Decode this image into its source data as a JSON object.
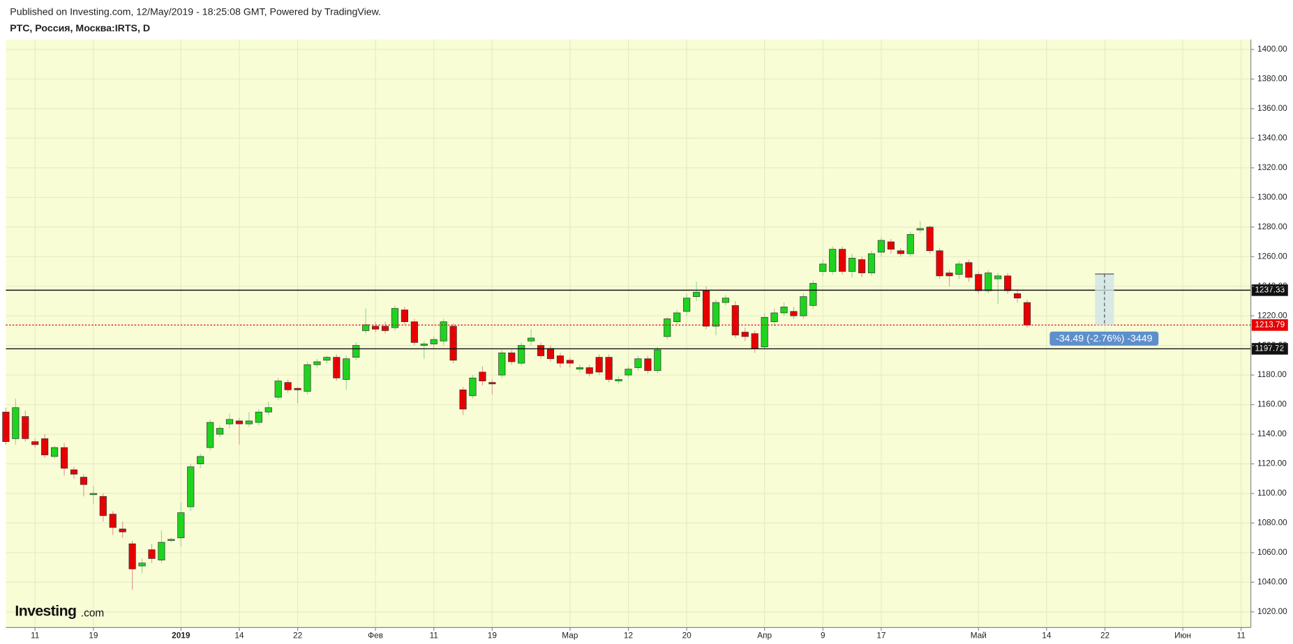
{
  "header": {
    "published": "Published on Investing.com, 12/May/2019 - 18:25:08 GMT, Powered by TradingView.",
    "symbol": "РТС, Россия, Москва:IRTS, D"
  },
  "chart_data": {
    "type": "candlestick",
    "watermark": "Investing",
    "watermark_suffix": ".com",
    "up_color": "#1fd41f",
    "down_color": "#e80000",
    "grid": true,
    "open": [
      1155,
      1137,
      1152,
      1135,
      1137,
      1125,
      1131,
      1116,
      1111,
      1100,
      1098,
      1086,
      1076,
      1066,
      1051,
      1062,
      1055,
      1069,
      1070,
      1091,
      1120,
      1131,
      1140,
      1147,
      1149,
      1147,
      1148,
      1155,
      1165,
      1175,
      1171,
      1169,
      1187,
      1190,
      1192,
      1177,
      1192,
      1210,
      1213,
      1213,
      1212,
      1224,
      1216,
      1200,
      1201,
      1203,
      1213,
      1170,
      1166,
      1182,
      1175,
      1180,
      1195,
      1188,
      1203,
      1200,
      1198,
      1193,
      1190,
      1184,
      1185,
      1192,
      1192,
      1176,
      1180,
      1185,
      1191,
      1183,
      1206,
      1216,
      1223,
      1233,
      1237,
      1213,
      1229,
      1227,
      1209,
      1208,
      1199,
      1216,
      1222,
      1223,
      1220,
      1227,
      1250,
      1250,
      1265,
      1250,
      1258,
      1249,
      1263,
      1270,
      1264,
      1262,
      1278,
      1280,
      1264,
      1249,
      1248,
      1256,
      1248,
      1237,
      1245,
      1247,
      1235,
      1229
    ],
    "high": [
      1158,
      1164,
      1156,
      1137,
      1140,
      1132,
      1134,
      1118,
      1113,
      1105,
      1100,
      1088,
      1081,
      1068,
      1056,
      1066,
      1075,
      1070,
      1094,
      1120,
      1127,
      1150,
      1146,
      1154,
      1151,
      1155,
      1157,
      1162,
      1178,
      1177,
      1172,
      1189,
      1191,
      1193,
      1194,
      1193,
      1202,
      1225,
      1216,
      1216,
      1227,
      1226,
      1218,
      1203,
      1206,
      1218,
      1215,
      1172,
      1180,
      1186,
      1177,
      1197,
      1197,
      1202,
      1211,
      1202,
      1200,
      1195,
      1192,
      1187,
      1187,
      1194,
      1194,
      1179,
      1186,
      1193,
      1193,
      1199,
      1219,
      1224,
      1235,
      1243,
      1240,
      1231,
      1234,
      1230,
      1212,
      1210,
      1222,
      1225,
      1229,
      1226,
      1235,
      1244,
      1258,
      1267,
      1267,
      1262,
      1260,
      1264,
      1273,
      1272,
      1266,
      1277,
      1284,
      1281,
      1266,
      1251,
      1257,
      1258,
      1250,
      1251,
      1249,
      1249,
      1238,
      1231
    ],
    "low": [
      1133,
      1133,
      1135,
      1131,
      1124,
      1124,
      1112,
      1110,
      1098,
      1093,
      1081,
      1072,
      1070,
      1035,
      1046,
      1053,
      1053,
      1067,
      1064,
      1088,
      1117,
      1129,
      1138,
      1144,
      1133,
      1145,
      1146,
      1153,
      1163,
      1168,
      1161,
      1167,
      1185,
      1188,
      1176,
      1170,
      1190,
      1208,
      1209,
      1208,
      1210,
      1214,
      1200,
      1191,
      1198,
      1200,
      1188,
      1153,
      1164,
      1173,
      1167,
      1178,
      1187,
      1186,
      1200,
      1191,
      1189,
      1185,
      1185,
      1182,
      1179,
      1180,
      1175,
      1174,
      1178,
      1183,
      1181,
      1181,
      1204,
      1214,
      1220,
      1230,
      1211,
      1207,
      1227,
      1205,
      1203,
      1195,
      1197,
      1213,
      1220,
      1218,
      1218,
      1225,
      1247,
      1248,
      1248,
      1246,
      1246,
      1247,
      1260,
      1262,
      1260,
      1260,
      1276,
      1262,
      1245,
      1240,
      1245,
      1243,
      1235,
      1235,
      1228,
      1235,
      1229,
      1212
    ],
    "close": [
      1135,
      1158,
      1137,
      1133,
      1126,
      1131,
      1117,
      1113,
      1106,
      1100,
      1085,
      1077,
      1074,
      1049,
      1053,
      1056,
      1067,
      1069,
      1087,
      1118,
      1125,
      1148,
      1144,
      1150,
      1147,
      1149,
      1155,
      1158,
      1176,
      1170,
      1170,
      1187,
      1189,
      1192,
      1178,
      1191,
      1200,
      1214,
      1211,
      1210,
      1225,
      1216,
      1202,
      1201,
      1204,
      1216,
      1190,
      1157,
      1178,
      1176,
      1174,
      1195,
      1189,
      1200,
      1205,
      1193,
      1191,
      1188,
      1188,
      1185,
      1181,
      1182,
      1177,
      1177,
      1184,
      1191,
      1183,
      1197,
      1218,
      1222,
      1232,
      1236,
      1213,
      1229,
      1232,
      1207,
      1206,
      1198,
      1219,
      1222,
      1226,
      1220,
      1233,
      1242,
      1255,
      1265,
      1250,
      1259,
      1249,
      1262,
      1271,
      1265,
      1262,
      1275,
      1279,
      1264,
      1247,
      1247,
      1255,
      1246,
      1237,
      1249,
      1247,
      1237,
      1232,
      1213.79
    ],
    "levels": [
      1237.33,
      1197.72
    ],
    "measure": {
      "from": 1248.28,
      "to": 1213.79,
      "label": "-34.49 (-2.76%) -3449"
    },
    "xlim": [
      0,
      128
    ],
    "ylim": [
      1009.4,
      1406.7
    ],
    "xticks": [
      {
        "value": 3,
        "label": "11"
      },
      {
        "value": 9,
        "label": "19"
      },
      {
        "value": 18,
        "label": "2019"
      },
      {
        "value": 24,
        "label": "14"
      },
      {
        "value": 30,
        "label": "22"
      },
      {
        "value": 38,
        "label": "Фев"
      },
      {
        "value": 44,
        "label": "11"
      },
      {
        "value": 50,
        "label": "19"
      },
      {
        "value": 58,
        "label": "Мар"
      },
      {
        "value": 64,
        "label": "12"
      },
      {
        "value": 70,
        "label": "20"
      },
      {
        "value": 78,
        "label": "Апр"
      },
      {
        "value": 84,
        "label": "9"
      },
      {
        "value": 90,
        "label": "17"
      },
      {
        "value": 100,
        "label": "Май"
      },
      {
        "value": 107,
        "label": "14"
      },
      {
        "value": 113,
        "label": "22"
      },
      {
        "value": 121,
        "label": "Июн"
      },
      {
        "value": 127,
        "label": "11"
      }
    ],
    "yticks": [
      {
        "value": 1020,
        "label": "1020.00"
      },
      {
        "value": 1040,
        "label": "1040.00"
      },
      {
        "value": 1060,
        "label": "1060.00"
      },
      {
        "value": 1080,
        "label": "1080.00"
      },
      {
        "value": 1100,
        "label": "1100.00"
      },
      {
        "value": 1120,
        "label": "1120.00"
      },
      {
        "value": 1140,
        "label": "1140.00"
      },
      {
        "value": 1160,
        "label": "1160.00"
      },
      {
        "value": 1180,
        "label": "1180.00"
      },
      {
        "value": 1200,
        "label": "1200.00"
      },
      {
        "value": 1220,
        "label": "1220.00"
      },
      {
        "value": 1240,
        "label": "1240.00"
      },
      {
        "value": 1260,
        "label": "1260.00"
      },
      {
        "value": 1280,
        "label": "1280.00"
      },
      {
        "value": 1300,
        "label": "1300.00"
      },
      {
        "value": 1320,
        "label": "1320.00"
      },
      {
        "value": 1340,
        "label": "1340.00"
      },
      {
        "value": 1360,
        "label": "1360.00"
      },
      {
        "value": 1380,
        "label": "1380.00"
      },
      {
        "value": 1400,
        "label": "1400.00"
      }
    ]
  }
}
